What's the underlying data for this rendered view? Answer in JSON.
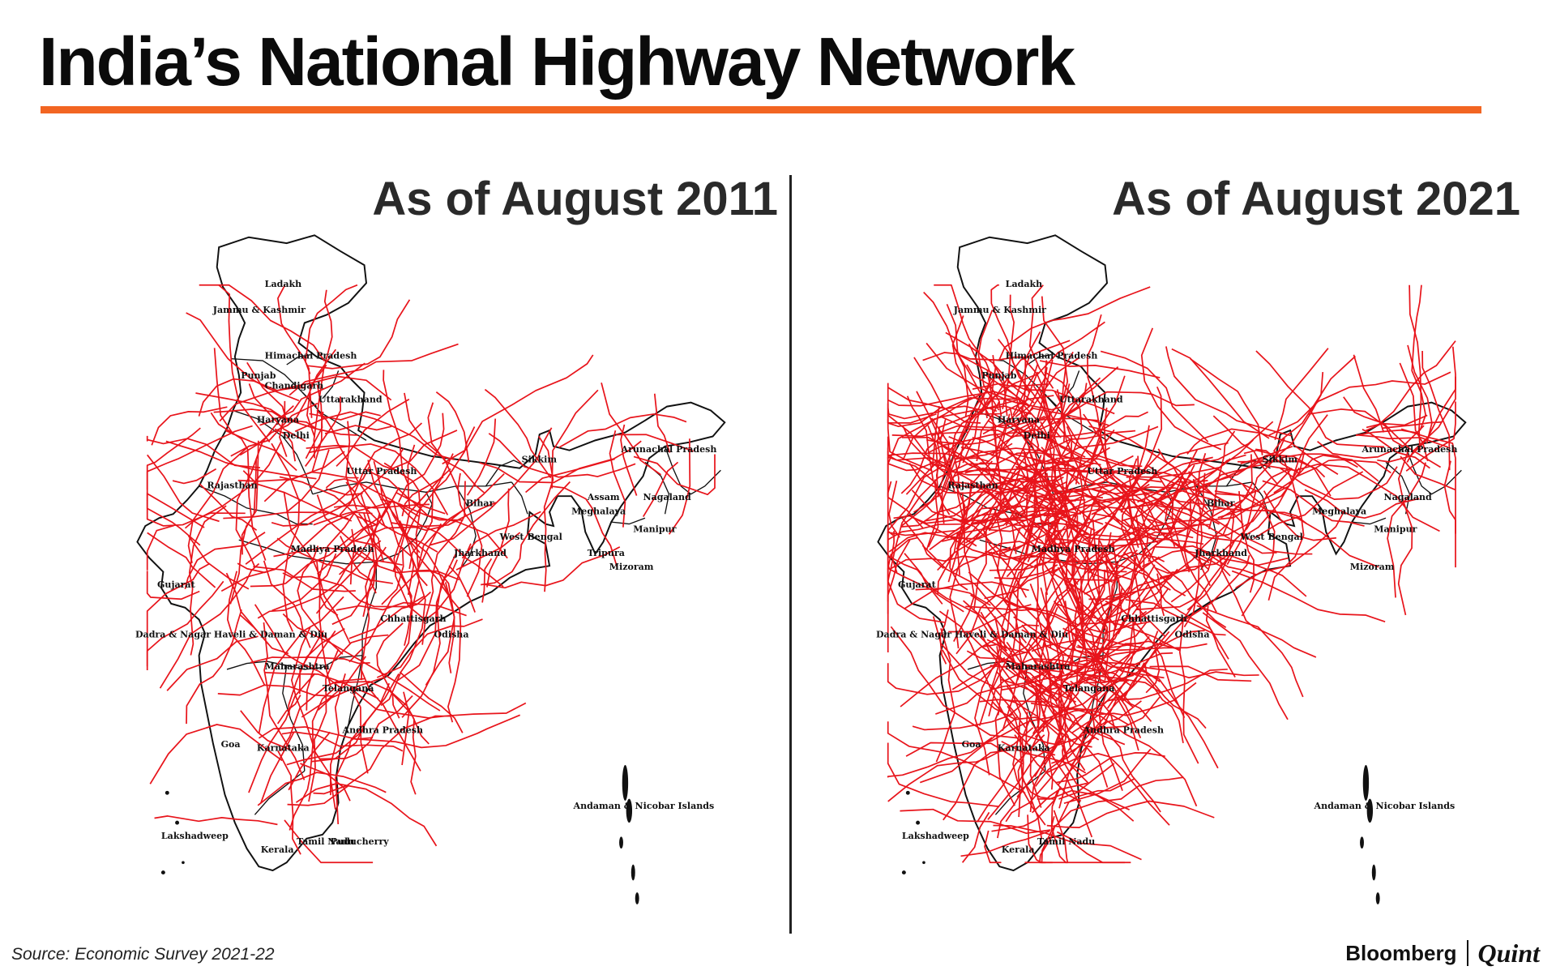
{
  "title": "India’s National Highway Network",
  "panels": [
    {
      "heading": "As of August 2011",
      "labels": [
        "Ladakh",
        "Jammu & Kashmir",
        "Himachal Pradesh",
        "Punjab",
        "Chandigarh",
        "Uttarakhand",
        "Haryana",
        "Delhi",
        "Uttar Pradesh",
        "Rajasthan",
        "Sikkim",
        "Arunachal Pradesh",
        "Assam",
        "Nagaland",
        "Meghalaya",
        "Bihar",
        "Manipur",
        "West Bengal",
        "Jharkhand",
        "Tripura",
        "Mizoram",
        "Madhya Pradesh",
        "Gujarat",
        "Chhattisgarh",
        "Odisha",
        "Dadra & Nagar Haveli & Daman & Diu",
        "Maharashtra",
        "Telangana",
        "Andhra Pradesh",
        "Goa",
        "Karnataka",
        "Andaman & Nicobar Islands",
        "Lakshadweep",
        "Tamil Nadu",
        "Puducherry",
        "Kerala"
      ]
    },
    {
      "heading": "As of August 2021",
      "labels": [
        "Ladakh",
        "Jammu & Kashmir",
        "Himachal Pradesh",
        "Punjab",
        "Uttarakhand",
        "Haryana",
        "Delhi",
        "Uttar Pradesh",
        "Rajasthan",
        "Sikkim",
        "Arunachal Pradesh",
        "Nagaland",
        "Meghalaya",
        "Bihar",
        "Manipur",
        "West Bengal",
        "Jharkhand",
        "Mizoram",
        "Madhya Pradesh",
        "Gujarat",
        "Chhattisgarh",
        "Odisha",
        "Dadra & Nagar Haveli & Daman & Diu",
        "Maharashtra",
        "Telangana",
        "Andhra Pradesh",
        "Goa",
        "Karnataka",
        "Andaman & Nicobar Islands",
        "Lakshadweep",
        "Tamil Nadu",
        "Kerala"
      ]
    }
  ],
  "map_style": {
    "highway_color": "#e8141b",
    "border_color": "#111111",
    "land_color": "#ffffff"
  },
  "source": "Source: Economic Survey 2021-22",
  "brand": {
    "name": "Bloomberg",
    "partner": "Quint"
  },
  "colors": {
    "accent": "#f26522"
  }
}
